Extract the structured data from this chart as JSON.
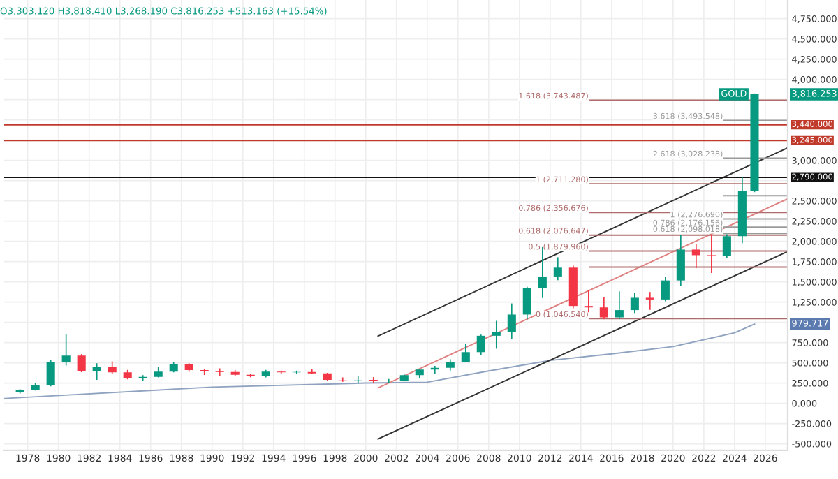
{
  "chart_data": {
    "type": "candlestick",
    "subtitle": "O3,303.120 H3,818.410 L3,268.190 C3,816.253 +513.163 (+15.54%)",
    "x": [
      1977.5,
      1978.5,
      1979.5,
      1980.5,
      1981.5,
      1982.5,
      1983.5,
      1984.5,
      1985.5,
      1986.5,
      1987.5,
      1988.5,
      1989.5,
      1990.5,
      1991.5,
      1992.5,
      1993.5,
      1994.5,
      1995.5,
      1996.5,
      1997.5,
      1998.5,
      1999.5,
      2000.5,
      2001.5,
      2002.5,
      2003.5,
      2004.5,
      2005.5,
      2006.5,
      2007.5,
      2008.5,
      2009.5,
      2010.5,
      2011.5,
      2012.5,
      2013.5,
      2014.5,
      2015.5,
      2016.5,
      2017.5,
      2018.5,
      2019.5,
      2020.5,
      2021.5,
      2022.5,
      2023.5,
      2024.5,
      2025.3
    ],
    "ohlc": [
      [
        135,
        168,
        129,
        165
      ],
      [
        165,
        243,
        165,
        226
      ],
      [
        226,
        524,
        216,
        512
      ],
      [
        512,
        850,
        474,
        590
      ],
      [
        590,
        600,
        391,
        398
      ],
      [
        398,
        488,
        297,
        448
      ],
      [
        448,
        511,
        374,
        382
      ],
      [
        382,
        406,
        303,
        309
      ],
      [
        309,
        341,
        285,
        327
      ],
      [
        327,
        442,
        326,
        391
      ],
      [
        391,
        502,
        390,
        487
      ],
      [
        487,
        487,
        395,
        410
      ],
      [
        410,
        418,
        358,
        401
      ],
      [
        401,
        424,
        345,
        386
      ],
      [
        386,
        403,
        344,
        353
      ],
      [
        353,
        360,
        330,
        333
      ],
      [
        333,
        406,
        326,
        391
      ],
      [
        391,
        397,
        369,
        383
      ],
      [
        383,
        396,
        372,
        387
      ],
      [
        387,
        416,
        367,
        369
      ],
      [
        369,
        369,
        283,
        290
      ],
      [
        290,
        313,
        273,
        288
      ],
      [
        288,
        326,
        252,
        290
      ],
      [
        290,
        316,
        263,
        273
      ],
      [
        273,
        293,
        255,
        279
      ],
      [
        279,
        349,
        277,
        347
      ],
      [
        347,
        417,
        320,
        416
      ],
      [
        416,
        455,
        373,
        438
      ],
      [
        438,
        537,
        411,
        513
      ],
      [
        513,
        730,
        513,
        632
      ],
      [
        632,
        841,
        602,
        834
      ],
      [
        834,
        1011,
        681,
        882
      ],
      [
        882,
        1226,
        802,
        1096
      ],
      [
        1096,
        1431,
        1044,
        1421
      ],
      [
        1421,
        1921,
        1308,
        1566
      ],
      [
        1566,
        1796,
        1527,
        1675
      ],
      [
        1675,
        1694,
        1180,
        1202
      ],
      [
        1202,
        1392,
        1131,
        1184
      ],
      [
        1184,
        1307,
        1046,
        1061
      ],
      [
        1061,
        1375,
        1046,
        1151
      ],
      [
        1151,
        1358,
        1123,
        1303
      ],
      [
        1303,
        1366,
        1160,
        1282
      ],
      [
        1282,
        1557,
        1266,
        1517
      ],
      [
        1517,
        2075,
        1451,
        1898
      ],
      [
        1898,
        1959,
        1677,
        1829
      ],
      [
        1829,
        2070,
        1615,
        1824
      ],
      [
        1824,
        2081,
        1805,
        2063
      ],
      [
        2063,
        2790,
        1984,
        2625
      ],
      [
        2625,
        3818.41,
        2614,
        3816.253
      ]
    ],
    "colors": [
      "#089981",
      "#089981",
      "#089981",
      "#089981",
      "#f23645",
      "#089981",
      "#f23645",
      "#f23645",
      "#089981",
      "#089981",
      "#089981",
      "#f23645",
      "#f23645",
      "#f23645",
      "#f23645",
      "#f23645",
      "#089981",
      "#f23645",
      "#089981",
      "#f23645",
      "#f23645",
      "#f23645",
      "#089981",
      "#f23645",
      "#089981",
      "#089981",
      "#089981",
      "#089981",
      "#089981",
      "#089981",
      "#089981",
      "#089981",
      "#089981",
      "#089981",
      "#089981",
      "#089981",
      "#f23645",
      "#f23645",
      "#f23645",
      "#089981",
      "#089981",
      "#f23645",
      "#089981",
      "#089981",
      "#f23645",
      "#f23645",
      "#089981",
      "#089981",
      "#089981"
    ],
    "series": [
      {
        "type": "line",
        "color": "#8fa3c0",
        "x": [
          1976.5,
          1990,
          2000,
          2004,
          2008,
          2012,
          2016,
          2020,
          2024,
          2025.3
        ],
        "values": [
          60,
          200,
          250,
          260,
          400,
          530,
          610,
          700,
          870,
          979.717
        ]
      },
      {
        "type": "line",
        "color": "#333333",
        "x": [
          2000.8,
          2027.4
        ],
        "values": [
          830,
          3150
        ]
      },
      {
        "type": "line",
        "color": "#333333",
        "x": [
          2000.8,
          2027.4
        ],
        "values": [
          -440,
          1870
        ]
      },
      {
        "type": "line",
        "color": "#e08080",
        "x": [
          2000.8,
          2027.4
        ],
        "values": [
          190,
          2520
        ]
      },
      {
        "type": "line",
        "color": "#b06c6c",
        "name": "1.618 (3,743.487)",
        "x": [
          2014.55,
          2027.4
        ],
        "values": [
          3743.487,
          3743.487
        ]
      },
      {
        "type": "line",
        "color": "#b06c6c",
        "name": "1 (2,711.280)",
        "x": [
          2014.55,
          2027.4
        ],
        "values": [
          2711.28,
          2711.28
        ]
      },
      {
        "type": "line",
        "color": "#b06c6c",
        "name": "0.786 (2,356.676)",
        "x": [
          2014.55,
          2027.4
        ],
        "values": [
          2356.676,
          2356.676
        ]
      },
      {
        "type": "line",
        "color": "#b06c6c",
        "name": "0.618 (2,076.647)",
        "x": [
          2014.55,
          2027.4
        ],
        "values": [
          2076.647,
          2076.647
        ]
      },
      {
        "type": "line",
        "color": "#b06c6c",
        "name": "0.5 (1,879.960)",
        "x": [
          2014.55,
          2027.4
        ],
        "values": [
          1879.96,
          1879.96
        ]
      },
      {
        "type": "line",
        "color": "#b06c6c",
        "x": [
          2014.55,
          2027.4
        ],
        "values": [
          1682,
          1682
        ]
      },
      {
        "type": "line",
        "color": "#b06c6c",
        "name": "0 (1,046.540)",
        "x": [
          2014.55,
          2027.4
        ],
        "values": [
          1046.54,
          1046.54
        ]
      },
      {
        "type": "line",
        "color": "#9a9a9a",
        "name": "3.618 (3,493.548)",
        "x": [
          2023.3,
          2027.4
        ],
        "values": [
          3493.548,
          3493.548
        ]
      },
      {
        "type": "line",
        "color": "#9a9a9a",
        "name": "2.618 (3,028.238)",
        "x": [
          2023.3,
          2027.4
        ],
        "values": [
          3028.238,
          3028.238
        ]
      },
      {
        "type": "line",
        "color": "#9a9a9a",
        "x": [
          2023.3,
          2027.4
        ],
        "values": [
          2563,
          2563
        ]
      },
      {
        "type": "line",
        "color": "#9a9a9a",
        "name": "1 (2,276.690)",
        "x": [
          2023.3,
          2027.4
        ],
        "values": [
          2276.69,
          2276.69
        ]
      },
      {
        "type": "line",
        "color": "#9a9a9a",
        "name": "0.786 (2,176.156)",
        "x": [
          2023.3,
          2027.4
        ],
        "values": [
          2176.156,
          2176.156
        ]
      },
      {
        "type": "line",
        "color": "#9a9a9a",
        "name": "0.618 (2,098.018)",
        "x": [
          2023.3,
          2027.4
        ],
        "values": [
          2098.018,
          2098.018
        ]
      }
    ],
    "ref_lines": [
      {
        "axis": "y",
        "value": 3440,
        "label": "3,440.000",
        "color": "#c0392b"
      },
      {
        "axis": "y",
        "value": 3245,
        "label": "3,245.000",
        "color": "#c0392b"
      },
      {
        "axis": "y",
        "value": 2790,
        "label": "2,790.000",
        "color": "#111111"
      }
    ],
    "annotations": [
      "GOLD",
      {
        "text": "3,816.253",
        "x": 2027.46,
        "y": 3816.253
      },
      {
        "text": "979.717",
        "x": 2027.46,
        "y": 979.717
      }
    ],
    "xlim": [
      1976.47,
      2027.46
    ],
    "xticks": [
      1978,
      1980,
      1982,
      1984,
      1986,
      1988,
      1990,
      1992,
      1994,
      1996,
      1998,
      2000,
      2002,
      2004,
      2006,
      2008,
      2010,
      2012,
      2014,
      2016,
      2018,
      2020,
      2022,
      2024,
      2026
    ],
    "ylim": [
      -580,
      4980
    ],
    "yticks": [
      {
        "value": -500,
        "label": "-500.000"
      },
      {
        "value": -250,
        "label": "-250.000"
      },
      {
        "value": 0,
        "label": "0.000"
      },
      {
        "value": 250,
        "label": "250.000"
      },
      {
        "value": 500,
        "label": "500.000"
      },
      {
        "value": 750,
        "label": "750.000"
      },
      {
        "value": 1000,
        "label": null
      },
      {
        "value": 1250,
        "label": "1,250.000"
      },
      {
        "value": 1500,
        "label": "1,500.000"
      },
      {
        "value": 1750,
        "label": "1,750.000"
      },
      {
        "value": 2000,
        "label": "2,000.000"
      },
      {
        "value": 2250,
        "label": "2,250.000"
      },
      {
        "value": 2500,
        "label": "2,500.000"
      },
      {
        "value": 2750,
        "label": null
      },
      {
        "value": 3000,
        "label": "3,000.000"
      },
      {
        "value": 3250,
        "label": null
      },
      {
        "value": 3500,
        "label": null
      },
      {
        "value": 3750,
        "label": null
      },
      {
        "value": 4000,
        "label": "4,000.000"
      },
      {
        "value": 4250,
        "label": "4,250.000"
      },
      {
        "value": 4500,
        "label": "4,500.000"
      },
      {
        "value": 4750,
        "label": "4,750.000"
      }
    ],
    "grid": true
  }
}
